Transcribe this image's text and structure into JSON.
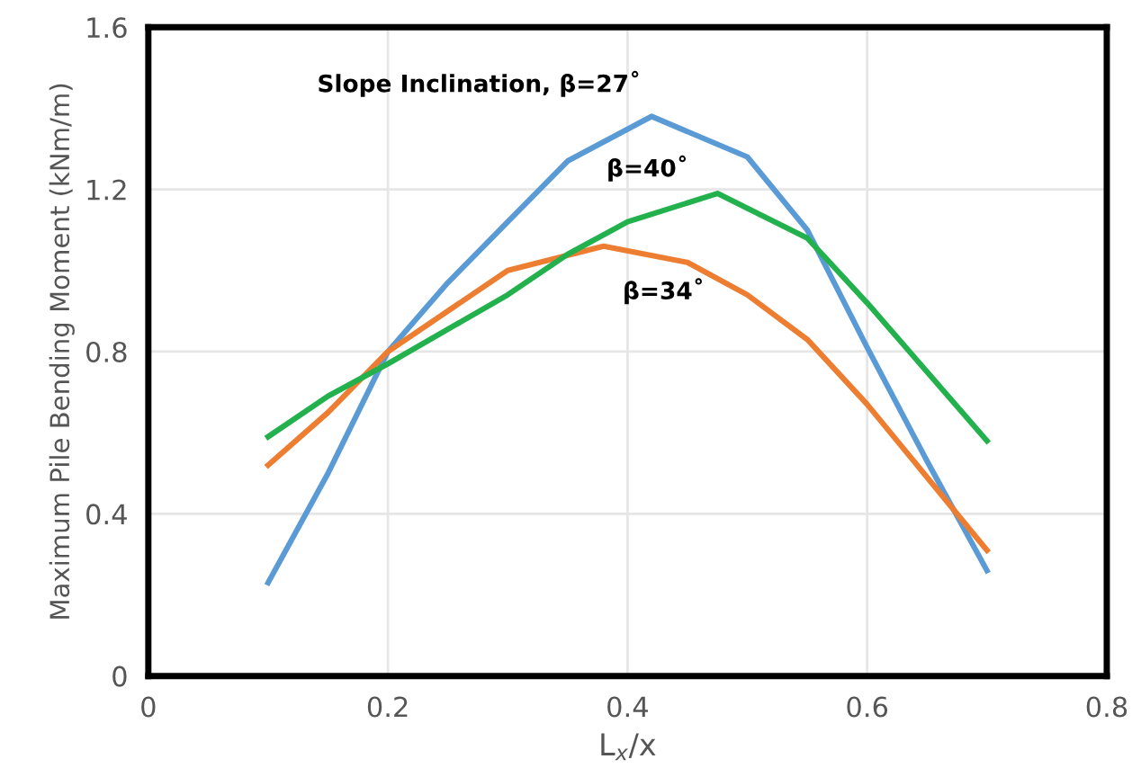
{
  "chart_data": {
    "type": "line",
    "xlabel": "L$_{x}$/x",
    "ylabel": "Maximum Pile Bending Moment (kNm/m)",
    "xlim": [
      0,
      0.8
    ],
    "xticks": [
      0,
      0.2,
      0.4,
      0.6,
      0.8
    ],
    "ylim": [
      0,
      1.6
    ],
    "yticks": [
      0,
      0.4,
      0.8,
      1.2,
      1.6
    ],
    "grid": true,
    "series": [
      {
        "name": "Slope Inclination, β=27˚",
        "color": "#5b9bd5",
        "x": [
          0.1,
          0.15,
          0.2,
          0.25,
          0.3,
          0.35,
          0.42,
          0.5,
          0.55,
          0.6,
          0.65,
          0.7
        ],
        "values": [
          0.23,
          0.5,
          0.8,
          0.97,
          1.12,
          1.27,
          1.38,
          1.28,
          1.1,
          0.81,
          0.53,
          0.26
        ]
      },
      {
        "name": "β=34˚",
        "color": "#ed7d31",
        "x": [
          0.1,
          0.15,
          0.2,
          0.3,
          0.38,
          0.45,
          0.5,
          0.55,
          0.6,
          0.65,
          0.7
        ],
        "values": [
          0.52,
          0.65,
          0.8,
          1.0,
          1.06,
          1.02,
          0.94,
          0.83,
          0.67,
          0.49,
          0.31
        ]
      },
      {
        "name": "β=40˚",
        "color": "#22b14c",
        "x": [
          0.1,
          0.15,
          0.2,
          0.3,
          0.35,
          0.4,
          0.475,
          0.55,
          0.6,
          0.65,
          0.7
        ],
        "values": [
          0.59,
          0.69,
          0.77,
          0.94,
          1.04,
          1.12,
          1.19,
          1.08,
          0.92,
          0.75,
          0.58
        ]
      }
    ]
  }
}
